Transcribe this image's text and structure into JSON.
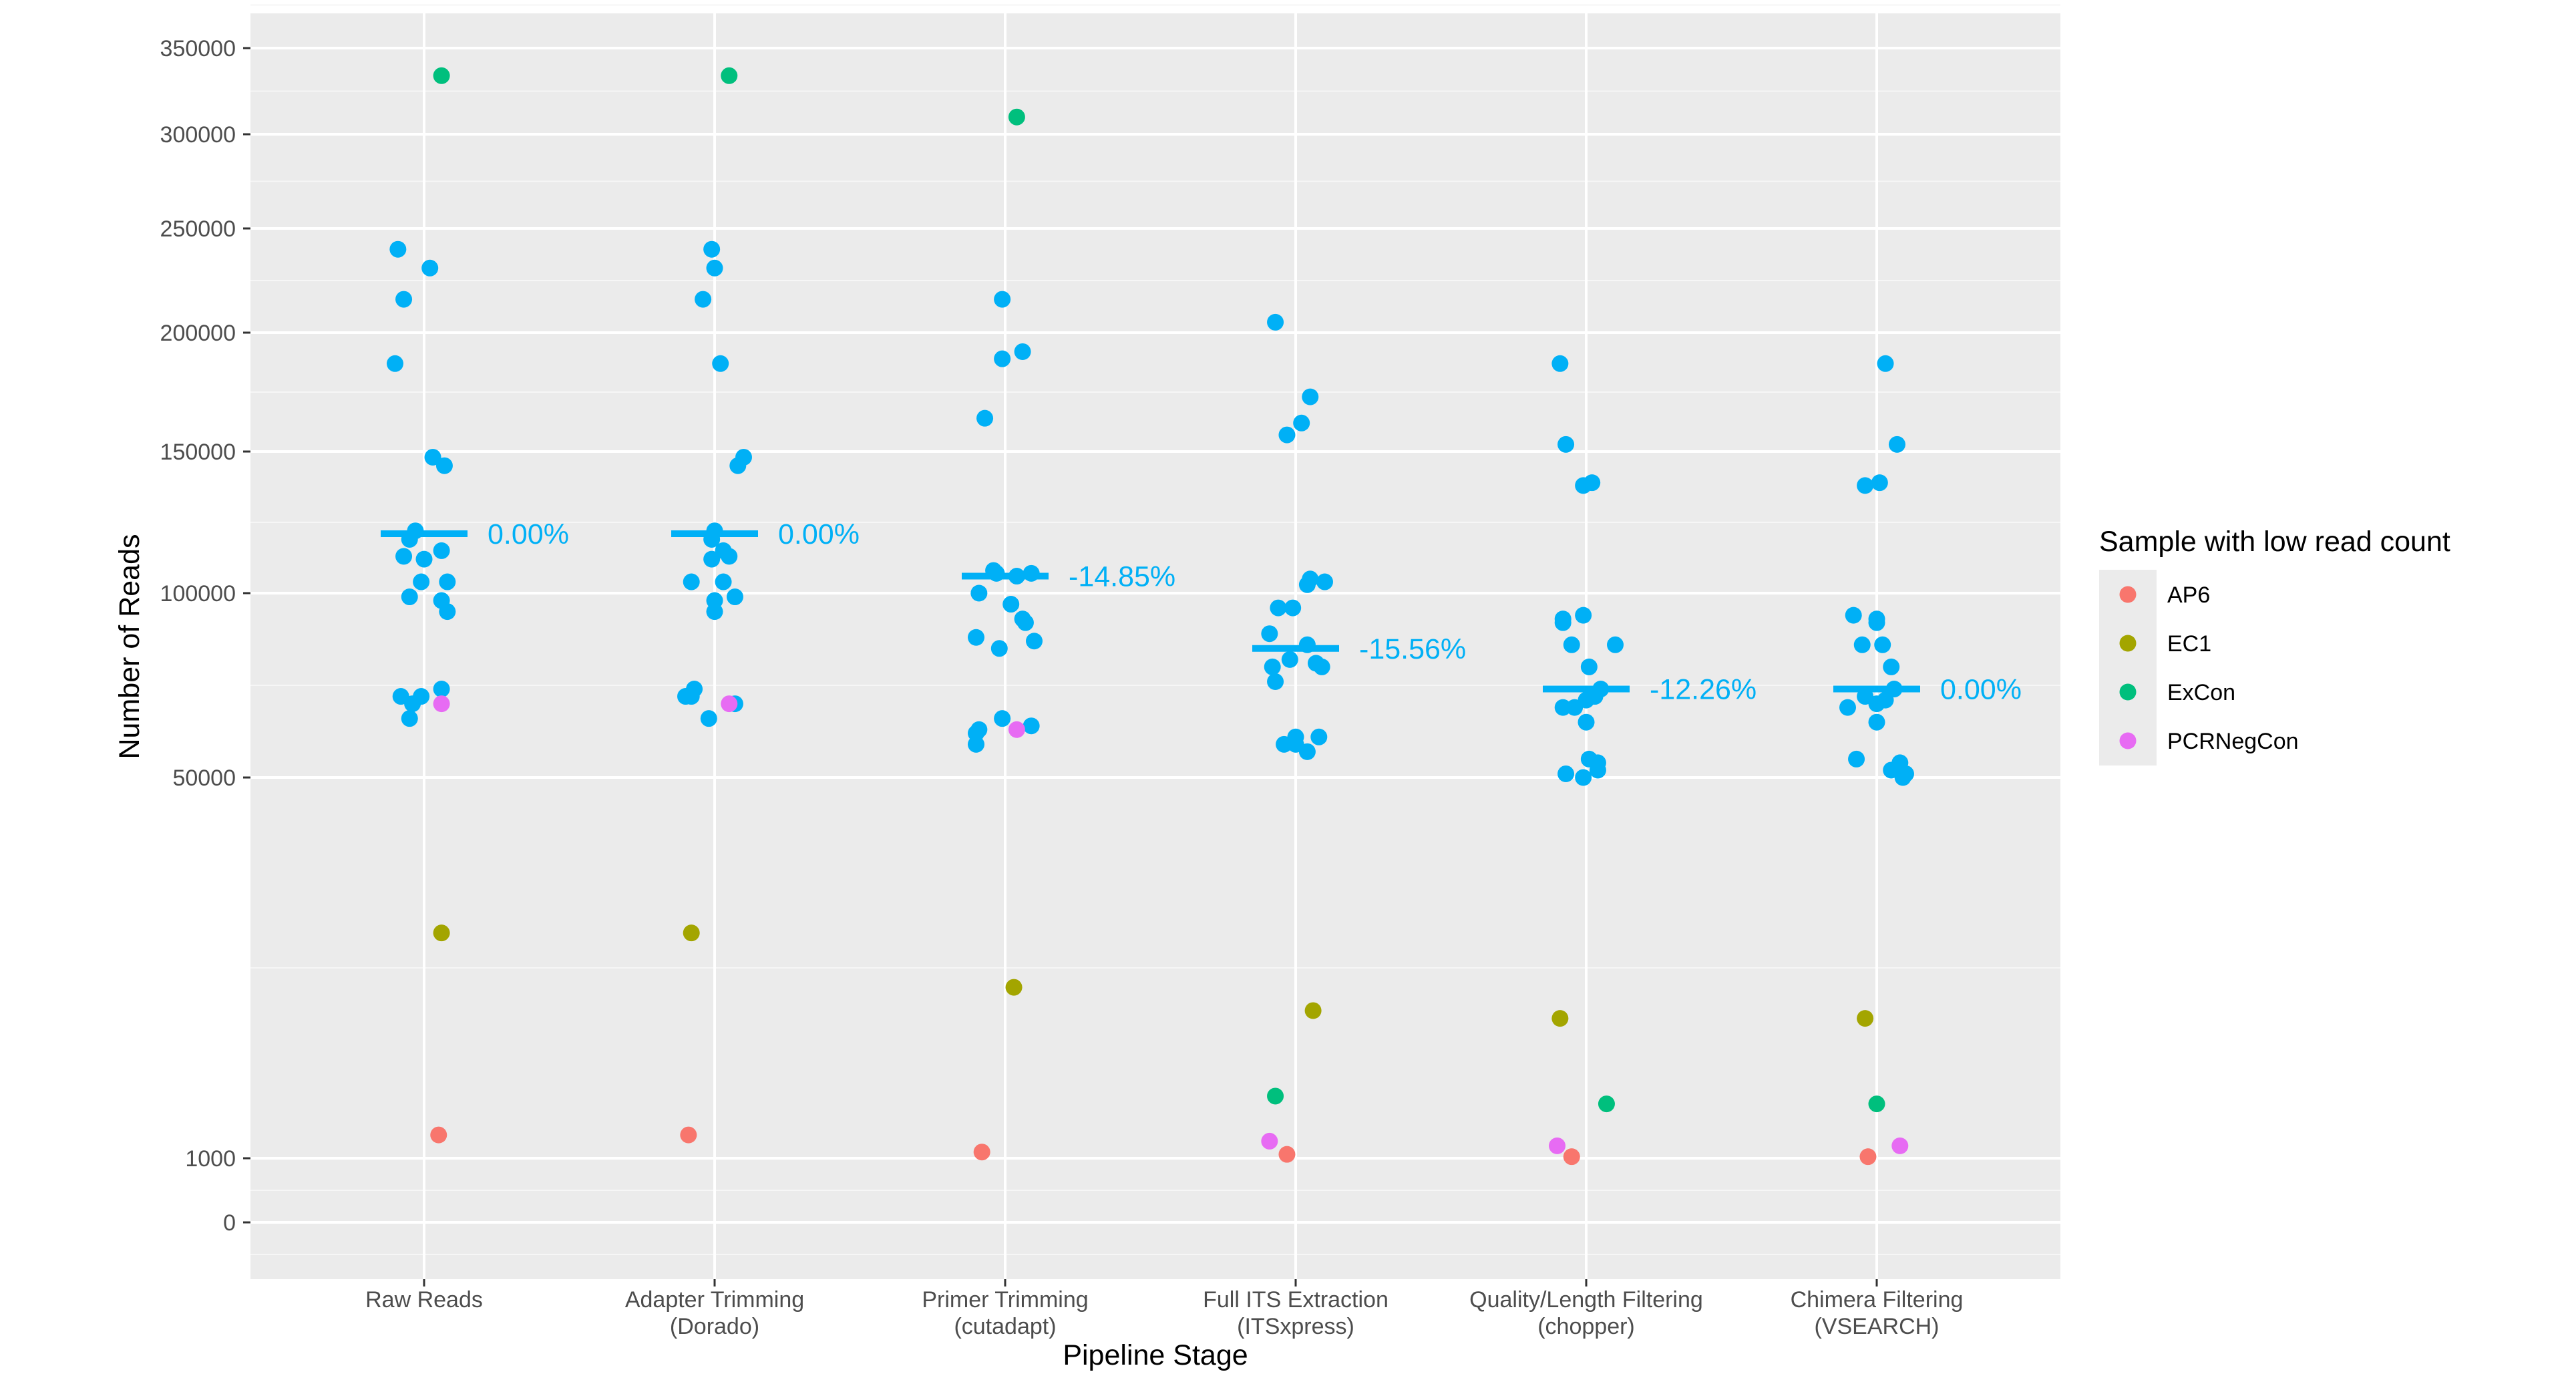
{
  "chart_data": {
    "type": "scatter",
    "xlabel": "Pipeline Stage",
    "ylabel": "Number of Reads",
    "y_ticks": [
      0,
      1000,
      50000,
      100000,
      150000,
      200000,
      250000,
      300000,
      350000
    ],
    "y_scale": "pseudo-log (sqrt-like, compressed near zero)",
    "ylim": [
      -3000,
      410000
    ],
    "grid": true,
    "legend": {
      "title": "Sample with low read count",
      "placement": "right",
      "entries": [
        {
          "name": "AP6",
          "color": "#F8766D"
        },
        {
          "name": "EC1",
          "color": "#A3A500"
        },
        {
          "name": "ExCon",
          "color": "#00BF7D"
        },
        {
          "name": "PCRNegCon",
          "color": "#E76BF3"
        }
      ]
    },
    "other_color": "#00B0F6",
    "categories": [
      {
        "label": "Raw Reads",
        "sub": ""
      },
      {
        "label": "Adapter Trimming",
        "sub": "(Dorado)"
      },
      {
        "label": "Primer Trimming",
        "sub": "(cutadapt)"
      },
      {
        "label": "Full ITS Extraction",
        "sub": "(ITSxpress)"
      },
      {
        "label": "Quality/Length Filtering",
        "sub": "(chopper)"
      },
      {
        "label": "Chimera Filtering",
        "sub": "(VSEARCH)"
      }
    ],
    "medians": [
      121000,
      121000,
      106000,
      85000,
      74000,
      74000
    ],
    "percent_labels": [
      "0.00%",
      "0.00%",
      "-14.85%",
      "-15.56%",
      "-12.26%",
      "0.00%"
    ],
    "series": [
      {
        "name": "AP6",
        "points": [
          {
            "stage": 0,
            "dx": 0.05,
            "y": 4000
          },
          {
            "stage": 1,
            "dx": -0.09,
            "y": 4000
          },
          {
            "stage": 2,
            "dx": -0.08,
            "y": 1800
          },
          {
            "stage": 3,
            "dx": -0.03,
            "y": 1500
          },
          {
            "stage": 4,
            "dx": -0.05,
            "y": 1200
          },
          {
            "stage": 5,
            "dx": -0.03,
            "y": 1200
          }
        ]
      },
      {
        "name": "EC1",
        "points": [
          {
            "stage": 0,
            "dx": 0.06,
            "y": 30000
          },
          {
            "stage": 1,
            "dx": -0.08,
            "y": 30000
          },
          {
            "stage": 2,
            "dx": 0.03,
            "y": 23000
          },
          {
            "stage": 3,
            "dx": 0.06,
            "y": 20000
          },
          {
            "stage": 4,
            "dx": -0.09,
            "y": 19000
          },
          {
            "stage": 5,
            "dx": -0.04,
            "y": 19000
          }
        ]
      },
      {
        "name": "ExCon",
        "points": [
          {
            "stage": 0,
            "dx": 0.06,
            "y": 334000
          },
          {
            "stage": 1,
            "dx": 0.05,
            "y": 334000
          },
          {
            "stage": 2,
            "dx": 0.04,
            "y": 310000
          },
          {
            "stage": 3,
            "dx": -0.07,
            "y": 9000
          },
          {
            "stage": 4,
            "dx": 0.07,
            "y": 8000
          },
          {
            "stage": 5,
            "dx": 0.0,
            "y": 8000
          }
        ]
      },
      {
        "name": "PCRNegCon",
        "points": [
          {
            "stage": 0,
            "dx": 0.06,
            "y": 70000
          },
          {
            "stage": 1,
            "dx": 0.05,
            "y": 70000
          },
          {
            "stage": 2,
            "dx": 0.04,
            "y": 63000
          },
          {
            "stage": 3,
            "dx": -0.09,
            "y": 3200
          },
          {
            "stage": 4,
            "dx": -0.1,
            "y": 2600
          },
          {
            "stage": 5,
            "dx": 0.08,
            "y": 2600
          }
        ]
      },
      {
        "name": "Other samples",
        "points": [
          {
            "stage": 0,
            "dx": -0.09,
            "y": 240000
          },
          {
            "stage": 0,
            "dx": 0.02,
            "y": 231000
          },
          {
            "stage": 0,
            "dx": -0.07,
            "y": 216000
          },
          {
            "stage": 0,
            "dx": -0.1,
            "y": 187000
          },
          {
            "stage": 0,
            "dx": 0.03,
            "y": 148000
          },
          {
            "stage": 0,
            "dx": 0.07,
            "y": 145000
          },
          {
            "stage": 0,
            "dx": -0.03,
            "y": 122000
          },
          {
            "stage": 0,
            "dx": -0.05,
            "y": 119000
          },
          {
            "stage": 0,
            "dx": 0.06,
            "y": 115000
          },
          {
            "stage": 0,
            "dx": -0.07,
            "y": 113000
          },
          {
            "stage": 0,
            "dx": 0.0,
            "y": 112000
          },
          {
            "stage": 0,
            "dx": -0.01,
            "y": 104000
          },
          {
            "stage": 0,
            "dx": 0.08,
            "y": 104000
          },
          {
            "stage": 0,
            "dx": -0.05,
            "y": 99000
          },
          {
            "stage": 0,
            "dx": 0.06,
            "y": 98000
          },
          {
            "stage": 0,
            "dx": 0.08,
            "y": 95000
          },
          {
            "stage": 0,
            "dx": 0.06,
            "y": 74000
          },
          {
            "stage": 0,
            "dx": -0.08,
            "y": 72000
          },
          {
            "stage": 0,
            "dx": -0.01,
            "y": 72000
          },
          {
            "stage": 0,
            "dx": -0.04,
            "y": 70000
          },
          {
            "stage": 0,
            "dx": -0.05,
            "y": 66000
          },
          {
            "stage": 1,
            "dx": -0.01,
            "y": 240000
          },
          {
            "stage": 1,
            "dx": 0.0,
            "y": 231000
          },
          {
            "stage": 1,
            "dx": -0.04,
            "y": 216000
          },
          {
            "stage": 1,
            "dx": 0.02,
            "y": 187000
          },
          {
            "stage": 1,
            "dx": 0.1,
            "y": 148000
          },
          {
            "stage": 1,
            "dx": 0.08,
            "y": 145000
          },
          {
            "stage": 1,
            "dx": 0.0,
            "y": 122000
          },
          {
            "stage": 1,
            "dx": -0.01,
            "y": 119000
          },
          {
            "stage": 1,
            "dx": 0.03,
            "y": 115000
          },
          {
            "stage": 1,
            "dx": 0.05,
            "y": 113000
          },
          {
            "stage": 1,
            "dx": -0.01,
            "y": 112000
          },
          {
            "stage": 1,
            "dx": -0.08,
            "y": 104000
          },
          {
            "stage": 1,
            "dx": 0.03,
            "y": 104000
          },
          {
            "stage": 1,
            "dx": 0.0,
            "y": 98000
          },
          {
            "stage": 1,
            "dx": 0.07,
            "y": 99000
          },
          {
            "stage": 1,
            "dx": 0.0,
            "y": 95000
          },
          {
            "stage": 1,
            "dx": -0.07,
            "y": 74000
          },
          {
            "stage": 1,
            "dx": -0.1,
            "y": 72000
          },
          {
            "stage": 1,
            "dx": -0.08,
            "y": 72000
          },
          {
            "stage": 1,
            "dx": 0.07,
            "y": 70000
          },
          {
            "stage": 1,
            "dx": -0.02,
            "y": 66000
          },
          {
            "stage": 2,
            "dx": -0.01,
            "y": 216000
          },
          {
            "stage": 2,
            "dx": 0.06,
            "y": 192000
          },
          {
            "stage": 2,
            "dx": -0.01,
            "y": 189000
          },
          {
            "stage": 2,
            "dx": -0.07,
            "y": 164000
          },
          {
            "stage": 2,
            "dx": -0.04,
            "y": 108000
          },
          {
            "stage": 2,
            "dx": -0.03,
            "y": 107000
          },
          {
            "stage": 2,
            "dx": 0.09,
            "y": 107000
          },
          {
            "stage": 2,
            "dx": 0.04,
            "y": 106000
          },
          {
            "stage": 2,
            "dx": -0.09,
            "y": 100000
          },
          {
            "stage": 2,
            "dx": 0.02,
            "y": 97000
          },
          {
            "stage": 2,
            "dx": 0.06,
            "y": 93000
          },
          {
            "stage": 2,
            "dx": 0.07,
            "y": 92000
          },
          {
            "stage": 2,
            "dx": -0.1,
            "y": 88000
          },
          {
            "stage": 2,
            "dx": 0.1,
            "y": 87000
          },
          {
            "stage": 2,
            "dx": -0.02,
            "y": 85000
          },
          {
            "stage": 2,
            "dx": -0.01,
            "y": 66000
          },
          {
            "stage": 2,
            "dx": 0.09,
            "y": 64000
          },
          {
            "stage": 2,
            "dx": -0.09,
            "y": 63000
          },
          {
            "stage": 2,
            "dx": -0.1,
            "y": 62000
          },
          {
            "stage": 2,
            "dx": -0.1,
            "y": 59000
          },
          {
            "stage": 3,
            "dx": -0.07,
            "y": 205000
          },
          {
            "stage": 3,
            "dx": 0.05,
            "y": 173000
          },
          {
            "stage": 3,
            "dx": 0.02,
            "y": 162000
          },
          {
            "stage": 3,
            "dx": -0.03,
            "y": 157000
          },
          {
            "stage": 3,
            "dx": 0.05,
            "y": 105000
          },
          {
            "stage": 3,
            "dx": 0.1,
            "y": 104000
          },
          {
            "stage": 3,
            "dx": 0.04,
            "y": 103000
          },
          {
            "stage": 3,
            "dx": -0.06,
            "y": 96000
          },
          {
            "stage": 3,
            "dx": -0.01,
            "y": 96000
          },
          {
            "stage": 3,
            "dx": -0.09,
            "y": 89000
          },
          {
            "stage": 3,
            "dx": 0.04,
            "y": 86000
          },
          {
            "stage": 3,
            "dx": -0.02,
            "y": 82000
          },
          {
            "stage": 3,
            "dx": 0.07,
            "y": 81000
          },
          {
            "stage": 3,
            "dx": 0.09,
            "y": 80000
          },
          {
            "stage": 3,
            "dx": -0.08,
            "y": 80000
          },
          {
            "stage": 3,
            "dx": -0.07,
            "y": 76000
          },
          {
            "stage": 3,
            "dx": 0.0,
            "y": 61000
          },
          {
            "stage": 3,
            "dx": 0.08,
            "y": 61000
          },
          {
            "stage": 3,
            "dx": 0.0,
            "y": 59000
          },
          {
            "stage": 3,
            "dx": -0.04,
            "y": 59000
          },
          {
            "stage": 3,
            "dx": 0.04,
            "y": 57000
          },
          {
            "stage": 4,
            "dx": -0.09,
            "y": 187000
          },
          {
            "stage": 4,
            "dx": -0.07,
            "y": 153000
          },
          {
            "stage": 4,
            "dx": 0.02,
            "y": 139000
          },
          {
            "stage": 4,
            "dx": -0.01,
            "y": 138000
          },
          {
            "stage": 4,
            "dx": -0.01,
            "y": 94000
          },
          {
            "stage": 4,
            "dx": -0.08,
            "y": 93000
          },
          {
            "stage": 4,
            "dx": -0.08,
            "y": 92000
          },
          {
            "stage": 4,
            "dx": -0.05,
            "y": 86000
          },
          {
            "stage": 4,
            "dx": 0.1,
            "y": 86000
          },
          {
            "stage": 4,
            "dx": 0.01,
            "y": 80000
          },
          {
            "stage": 4,
            "dx": 0.05,
            "y": 74000
          },
          {
            "stage": 4,
            "dx": 0.03,
            "y": 72000
          },
          {
            "stage": 4,
            "dx": 0.0,
            "y": 71000
          },
          {
            "stage": 4,
            "dx": -0.04,
            "y": 69000
          },
          {
            "stage": 4,
            "dx": -0.08,
            "y": 69000
          },
          {
            "stage": 4,
            "dx": 0.0,
            "y": 65000
          },
          {
            "stage": 4,
            "dx": 0.01,
            "y": 55000
          },
          {
            "stage": 4,
            "dx": 0.04,
            "y": 54000
          },
          {
            "stage": 4,
            "dx": 0.04,
            "y": 52000
          },
          {
            "stage": 4,
            "dx": -0.07,
            "y": 51000
          },
          {
            "stage": 4,
            "dx": -0.01,
            "y": 50000
          },
          {
            "stage": 5,
            "dx": 0.03,
            "y": 187000
          },
          {
            "stage": 5,
            "dx": 0.07,
            "y": 153000
          },
          {
            "stage": 5,
            "dx": 0.01,
            "y": 139000
          },
          {
            "stage": 5,
            "dx": -0.04,
            "y": 138000
          },
          {
            "stage": 5,
            "dx": -0.08,
            "y": 94000
          },
          {
            "stage": 5,
            "dx": 0.0,
            "y": 93000
          },
          {
            "stage": 5,
            "dx": 0.0,
            "y": 92000
          },
          {
            "stage": 5,
            "dx": -0.05,
            "y": 86000
          },
          {
            "stage": 5,
            "dx": 0.02,
            "y": 86000
          },
          {
            "stage": 5,
            "dx": 0.05,
            "y": 80000
          },
          {
            "stage": 5,
            "dx": 0.06,
            "y": 74000
          },
          {
            "stage": 5,
            "dx": -0.04,
            "y": 72000
          },
          {
            "stage": 5,
            "dx": 0.03,
            "y": 71000
          },
          {
            "stage": 5,
            "dx": 0.0,
            "y": 70000
          },
          {
            "stage": 5,
            "dx": -0.1,
            "y": 69000
          },
          {
            "stage": 5,
            "dx": 0.0,
            "y": 65000
          },
          {
            "stage": 5,
            "dx": -0.07,
            "y": 55000
          },
          {
            "stage": 5,
            "dx": 0.08,
            "y": 54000
          },
          {
            "stage": 5,
            "dx": 0.05,
            "y": 52000
          },
          {
            "stage": 5,
            "dx": 0.1,
            "y": 51000
          },
          {
            "stage": 5,
            "dx": 0.09,
            "y": 50000
          }
        ]
      }
    ]
  }
}
